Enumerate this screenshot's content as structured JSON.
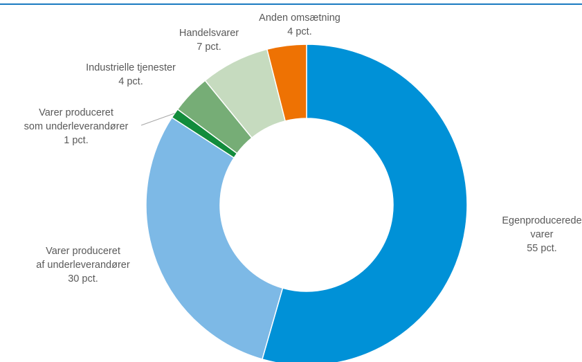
{
  "colors": {
    "rule": "#1a7ac0"
  },
  "chart_data": {
    "type": "pie",
    "variant": "donut",
    "title": "",
    "legend": "none",
    "categories": [
      "Egenproducerede varer",
      "Varer produceret af underleverandører",
      "Varer produceret som underleverandører",
      "Industrielle tjenester",
      "Handelsvarer",
      "Anden omsætning"
    ],
    "values": [
      55,
      30,
      1,
      4,
      7,
      4
    ],
    "colors": [
      "#0091d7",
      "#7db9e6",
      "#128c3c",
      "#76ad76",
      "#c6dbbf",
      "#ee7203"
    ],
    "labels": [
      {
        "lines": [
          "Egenproducerede",
          "varer",
          "55 pct."
        ]
      },
      {
        "lines": [
          "Varer produceret",
          "af  underleverandører",
          "30 pct."
        ]
      },
      {
        "lines": [
          "Varer produceret",
          "som  underleverandører",
          "1 pct."
        ]
      },
      {
        "lines": [
          "Industrielle tjenester",
          "4 pct."
        ]
      },
      {
        "lines": [
          "Handelsvarer",
          "7 pct."
        ]
      },
      {
        "lines": [
          "Anden omsætning",
          "4 pct."
        ]
      }
    ]
  }
}
